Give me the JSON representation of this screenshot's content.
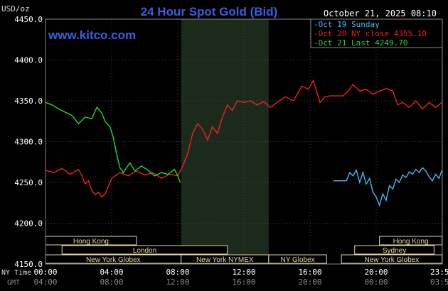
{
  "chart_data": {
    "type": "line",
    "title": "24 Hour Spot Gold (Bid)",
    "unit_label": "USD/oz",
    "timestamp": "October 21, 2025 08:10",
    "watermark": "www.kitco.com",
    "ylim": [
      4150,
      4450
    ],
    "y_ticks": [
      "4450.0",
      "4400.0",
      "4350.0",
      "4300.0",
      "4250.0",
      "4200.0",
      "4150.0"
    ],
    "y_tick_values": [
      4450,
      4400,
      4350,
      4300,
      4250,
      4200,
      4150
    ],
    "xlim": [
      0,
      24
    ],
    "x_ticks": [
      {
        "ny": "00:00",
        "gmt": "04:00",
        "hour": 0
      },
      {
        "ny": "04:00",
        "gmt": "08:00",
        "hour": 4
      },
      {
        "ny": "08:00",
        "gmt": "12:00",
        "hour": 8
      },
      {
        "ny": "12:00",
        "gmt": "16:00",
        "hour": 12
      },
      {
        "ny": "16:00",
        "gmt": "20:00",
        "hour": 16
      },
      {
        "ny": "20:00",
        "gmt": "00:00",
        "hour": 20
      },
      {
        "ny": "23:59",
        "gmt": "03:59",
        "hour": 23.98
      }
    ],
    "x_row_labels": {
      "ny": "NY Time",
      "gmt": "GMT"
    },
    "shaded_hours": [
      8.2,
      13.5
    ],
    "grid": true,
    "legend_position": "top-right",
    "legend": [
      {
        "text": "Oct 19 Sunday",
        "color": "#44bbee"
      },
      {
        "text": "Oct 20 NY close 4355.10",
        "color": "#ee2222"
      },
      {
        "text": "Oct 21 Last 4249.70",
        "color": "#22dd22"
      }
    ],
    "series": [
      {
        "name": "Oct 19 Sunday",
        "color": "#44bbee",
        "x": [
          17.4,
          18.2,
          18.4,
          18.6,
          18.8,
          19.0,
          19.2,
          19.4,
          19.6,
          19.8,
          20.0,
          20.2,
          20.4,
          20.6,
          20.8,
          21.0,
          21.2,
          21.4,
          21.6,
          21.8,
          22.0,
          22.2,
          22.4,
          22.6,
          22.8,
          23.0,
          23.2,
          23.4,
          23.6,
          23.8,
          23.98
        ],
        "y": [
          4252,
          4252,
          4262,
          4258,
          4265,
          4250,
          4262,
          4248,
          4255,
          4238,
          4232,
          4222,
          4236,
          4228,
          4246,
          4242,
          4254,
          4250,
          4259,
          4256,
          4263,
          4260,
          4266,
          4262,
          4268,
          4264,
          4257,
          4252,
          4260,
          4255,
          4265
        ]
      },
      {
        "name": "Oct 20 NY close 4355.10",
        "color": "#ee2222",
        "x": [
          0,
          0.5,
          1.0,
          1.5,
          2.0,
          2.2,
          2.4,
          2.6,
          2.8,
          3.0,
          3.2,
          3.4,
          3.6,
          3.8,
          4.0,
          4.2,
          4.5,
          5.0,
          5.5,
          6.0,
          6.5,
          7.0,
          7.5,
          8.0,
          8.3,
          8.6,
          8.9,
          9.2,
          9.5,
          9.8,
          10.1,
          10.4,
          10.7,
          11.0,
          11.3,
          11.6,
          12.0,
          12.4,
          12.8,
          13.2,
          13.6,
          14.0,
          14.5,
          15.0,
          15.5,
          15.9,
          16.2,
          16.6,
          16.9,
          17.2,
          17.6,
          18.0,
          18.3,
          18.6,
          19.0,
          19.4,
          19.8,
          20.2,
          20.6,
          21.0,
          21.3,
          21.6,
          22.0,
          22.4,
          22.8,
          23.2,
          23.6,
          23.98
        ],
        "y": [
          4265,
          4262,
          4267,
          4260,
          4266,
          4258,
          4248,
          4252,
          4240,
          4235,
          4238,
          4232,
          4236,
          4245,
          4255,
          4258,
          4262,
          4258,
          4264,
          4259,
          4262,
          4255,
          4260,
          4258,
          4270,
          4285,
          4310,
          4322,
          4315,
          4302,
          4318,
          4310,
          4330,
          4345,
          4338,
          4350,
          4348,
          4350,
          4345,
          4349,
          4342,
          4348,
          4355,
          4350,
          4368,
          4364,
          4375,
          4348,
          4355,
          4356,
          4356,
          4356,
          4362,
          4370,
          4362,
          4364,
          4358,
          4362,
          4365,
          4362,
          4345,
          4348,
          4342,
          4350,
          4340,
          4348,
          4342,
          4348
        ]
      },
      {
        "name": "Oct 21 Last 4249.70",
        "color": "#22dd22",
        "x": [
          0,
          0.4,
          0.8,
          1.2,
          1.6,
          2.0,
          2.4,
          2.8,
          3.1,
          3.4,
          3.6,
          3.9,
          4.1,
          4.3,
          4.5,
          4.7,
          4.9,
          5.1,
          5.4,
          5.8,
          6.2,
          6.6,
          7.0,
          7.4,
          7.8,
          8.0,
          8.15
        ],
        "y": [
          4348,
          4345,
          4340,
          4336,
          4332,
          4322,
          4330,
          4328,
          4342,
          4335,
          4325,
          4318,
          4305,
          4285,
          4268,
          4262,
          4268,
          4274,
          4264,
          4270,
          4265,
          4258,
          4262,
          4260,
          4266,
          4258,
          4250
        ]
      }
    ],
    "sessions": [
      {
        "label": "Hong Kong",
        "start": 0,
        "end": 5.5,
        "row": 0
      },
      {
        "label": "London",
        "start": 1,
        "end": 11,
        "row": 1
      },
      {
        "label": "New York Globex",
        "start": 0,
        "end": 8.2,
        "row": 2
      },
      {
        "label": "New York NYMEX",
        "start": 8.2,
        "end": 13.5,
        "row": 2
      },
      {
        "label": "NY Globex",
        "start": 13.5,
        "end": 17,
        "row": 2
      },
      {
        "label": "Hong Kong",
        "start": 20.2,
        "end": 23.98,
        "row": 0
      },
      {
        "label": "Sydney",
        "start": 18.7,
        "end": 23.5,
        "row": 1
      },
      {
        "label": "New York Globex",
        "start": 17.9,
        "end": 23.98,
        "row": 2
      }
    ]
  }
}
